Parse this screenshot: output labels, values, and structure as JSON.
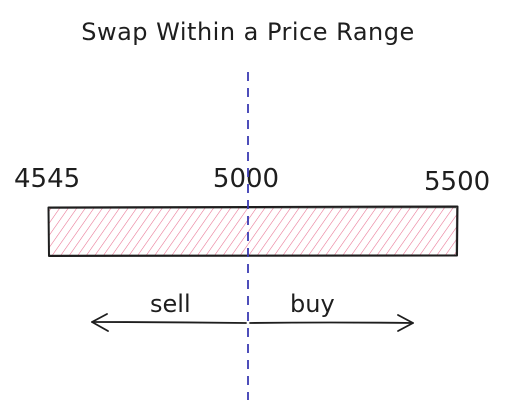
{
  "title": "Swap Within a Price Range",
  "prices": {
    "lower": "4545",
    "current": "5000",
    "upper": "5500"
  },
  "directions": {
    "sell": "sell",
    "buy": "buy"
  },
  "colors": {
    "stroke": "#1e1e1e",
    "hatch": "#e03e6b",
    "divider": "#3b3bb3",
    "background": "#ffffff"
  }
}
